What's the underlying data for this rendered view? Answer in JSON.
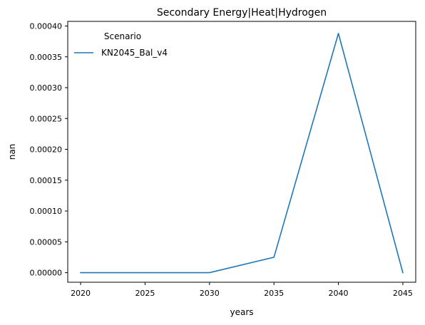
{
  "chart_data": {
    "type": "line",
    "title": "Secondary Energy|Heat|Hydrogen",
    "xlabel": "years",
    "ylabel": "nan",
    "x": [
      2020,
      2025,
      2030,
      2035,
      2040,
      2045
    ],
    "series": [
      {
        "name": "KN2045_Bal_v4",
        "color": "#1f77b4",
        "values": [
          0.0,
          0.0,
          0.0,
          2.5e-05,
          0.000388,
          0.0
        ]
      }
    ],
    "xlim": [
      2019,
      2046
    ],
    "ylim": [
      -1.55e-05,
      0.0004075
    ],
    "xticks": [
      2020,
      2025,
      2030,
      2035,
      2040,
      2045
    ],
    "xtick_labels": [
      "2020",
      "2025",
      "2030",
      "2035",
      "2040",
      "2045"
    ],
    "yticks": [
      0,
      5e-05,
      0.0001,
      0.00015,
      0.0002,
      0.00025,
      0.0003,
      0.00035,
      0.0004
    ],
    "ytick_labels": [
      "0.00000",
      "0.00005",
      "0.00010",
      "0.00015",
      "0.00020",
      "0.00025",
      "0.00030",
      "0.00035",
      "0.00040"
    ],
    "grid": false,
    "legend": {
      "title": "Scenario",
      "placement": "top-left"
    }
  }
}
